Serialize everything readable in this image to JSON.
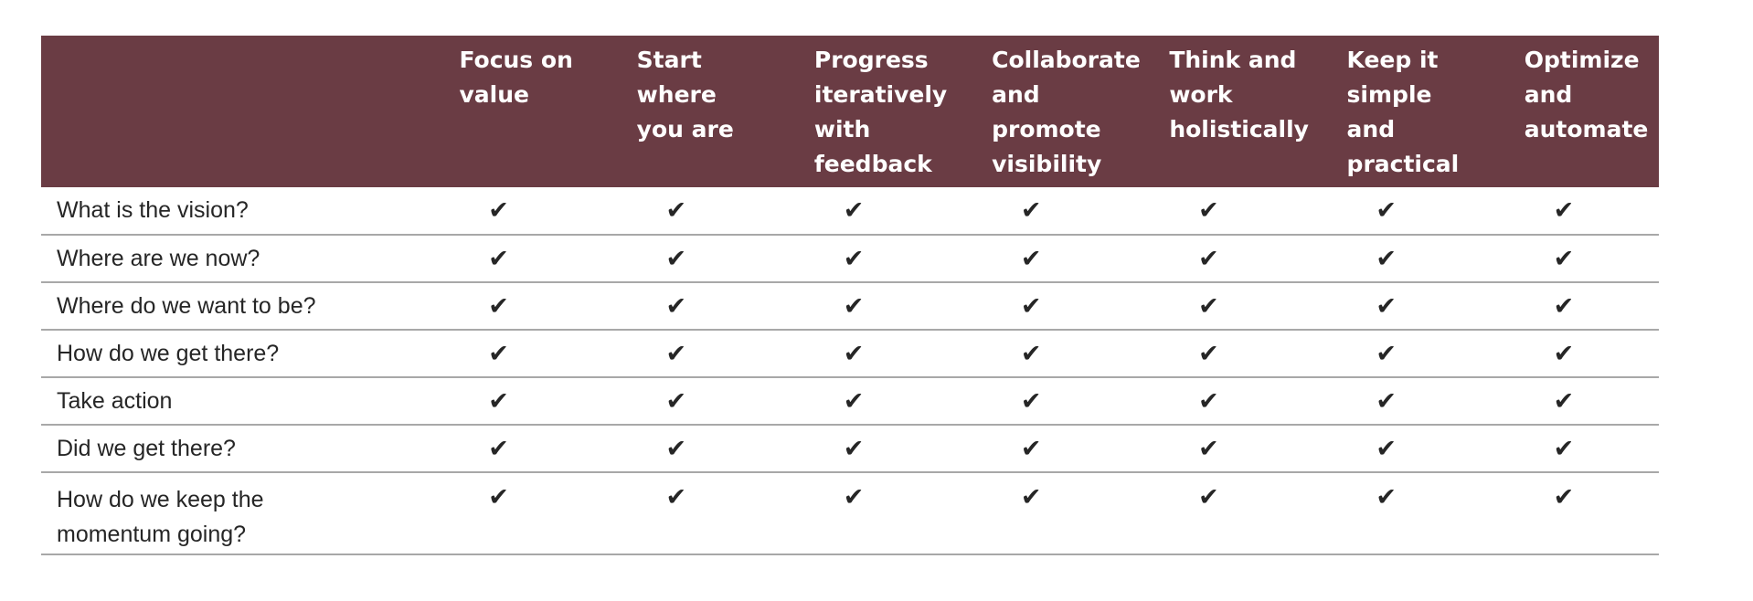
{
  "principles": [
    "Focus on value",
    "Start where you are",
    "Progress iteratively with feedback",
    "Collaborate and promote visibility",
    "Think and work holistically",
    "Keep it simple and practical",
    "Optimize and automate"
  ],
  "check_glyph": "✔",
  "colors": {
    "header_bg": "#6a3c44",
    "strong_check": "#5a1a3c",
    "weak_check": "#c8c8c8",
    "row_border": "#a8a8a8"
  },
  "rows": [
    {
      "question": "What is the vision?",
      "marks": [
        "strong",
        "weak",
        "weak",
        "strong",
        "strong",
        "weak",
        "weak"
      ]
    },
    {
      "question": "Where are we now?",
      "marks": [
        "weak",
        "strong",
        "weak",
        "strong",
        "weak",
        "weak",
        "weak"
      ]
    },
    {
      "question": "Where do we want to be?",
      "marks": [
        "weak",
        "weak",
        "strong",
        "weak",
        "strong",
        "strong",
        "strong"
      ]
    },
    {
      "question": "How do we get there?",
      "marks": [
        "weak",
        "weak",
        "strong",
        "strong",
        "strong",
        "strong",
        "weak"
      ]
    },
    {
      "question": "Take action",
      "marks": [
        "strong",
        "weak",
        "strong",
        "strong",
        "weak",
        "weak",
        "weak"
      ]
    },
    {
      "question": "Did we get there?",
      "marks": [
        "strong",
        "weak",
        "weak",
        "strong",
        "strong",
        "weak",
        "weak"
      ]
    },
    {
      "question": "How do we keep the momentum going?",
      "marks": [
        "strong",
        "weak",
        "weak",
        "strong",
        "strong",
        "weak",
        "strong"
      ]
    }
  ]
}
